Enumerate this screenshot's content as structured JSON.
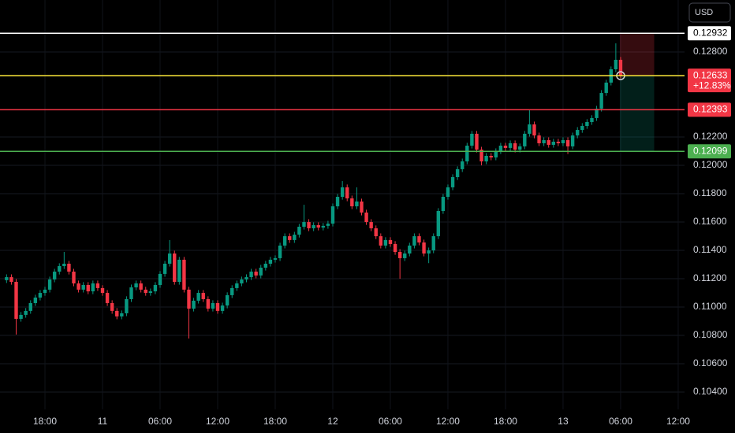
{
  "chart_data": {
    "type": "candlestick",
    "currency": "USD",
    "up_color": "#089981",
    "down_color": "#f23645",
    "grid": true,
    "ylim": [
      0.10278,
      0.13167
    ],
    "yticks": [
      {
        "value": 0.128,
        "label": "0.12800"
      },
      {
        "value": 0.122,
        "label": "0.12200"
      },
      {
        "value": 0.12,
        "label": "0.12000"
      },
      {
        "value": 0.118,
        "label": "0.11800"
      },
      {
        "value": 0.116,
        "label": "0.11600"
      },
      {
        "value": 0.114,
        "label": "0.11400"
      },
      {
        "value": 0.112,
        "label": "0.11200"
      },
      {
        "value": 0.11,
        "label": "0.11000"
      },
      {
        "value": 0.108,
        "label": "0.10800"
      },
      {
        "value": 0.106,
        "label": "0.10600"
      },
      {
        "value": 0.104,
        "label": "0.10400"
      }
    ],
    "categories": [
      null,
      null,
      null,
      null,
      null,
      null,
      null,
      null,
      "18:00",
      null,
      null,
      null,
      null,
      null,
      null,
      null,
      null,
      null,
      null,
      null,
      "11",
      null,
      null,
      null,
      null,
      null,
      null,
      null,
      null,
      null,
      null,
      null,
      "06:00",
      null,
      null,
      null,
      null,
      null,
      null,
      null,
      null,
      null,
      null,
      null,
      "12:00",
      null,
      null,
      null,
      null,
      null,
      null,
      null,
      null,
      null,
      null,
      null,
      "18:00",
      null,
      null,
      null,
      null,
      null,
      null,
      null,
      null,
      null,
      null,
      null,
      "12",
      null,
      null,
      null,
      null,
      null,
      null,
      null,
      null,
      null,
      null,
      null,
      "06:00",
      null,
      null,
      null,
      null,
      null,
      null,
      null,
      null,
      null,
      null,
      null,
      "12:00",
      null,
      null,
      null,
      null,
      null,
      null,
      null,
      null,
      null,
      null,
      null,
      "18:00",
      null,
      null,
      null,
      null,
      null,
      null,
      null,
      null,
      null,
      null,
      null,
      "13",
      null,
      null,
      null,
      null,
      null,
      null,
      null,
      null,
      null,
      null,
      null,
      "06:00",
      null,
      null,
      null,
      null,
      null,
      null,
      null,
      null,
      null,
      null,
      null,
      "12:00"
    ],
    "open": [
      0.1119,
      0.11211,
      0.11178,
      0.10917,
      0.10945,
      0.10973,
      0.11028,
      0.11067,
      0.111,
      0.11123,
      0.11195,
      0.1125,
      0.11289,
      0.11306,
      0.1125,
      0.11167,
      0.11123,
      0.11156,
      0.11111,
      0.11167,
      0.11134,
      0.111,
      0.11028,
      0.10973,
      0.10934,
      0.10956,
      0.11056,
      0.11139,
      0.11167,
      0.11123,
      0.111,
      0.11111,
      0.11156,
      0.11234,
      0.11306,
      0.11378,
      0.11178,
      0.11334,
      0.11123,
      0.10989,
      0.11045,
      0.111,
      0.11056,
      0.10989,
      0.11028,
      0.10973,
      0.11011,
      0.11084,
      0.11134,
      0.11167,
      0.11195,
      0.11211,
      0.1125,
      0.11223,
      0.11278,
      0.11306,
      0.11334,
      0.11345,
      0.11434,
      0.115,
      0.11473,
      0.11511,
      0.11567,
      0.116,
      0.11556,
      0.11578,
      0.11561,
      0.11573,
      0.11589,
      0.11711,
      0.11778,
      0.11845,
      0.11767,
      0.11711,
      0.11745,
      0.11667,
      0.116,
      0.11556,
      0.115,
      0.11434,
      0.11473,
      0.11445,
      0.11389,
      0.11345,
      0.11378,
      0.11434,
      0.115,
      0.11456,
      0.11378,
      0.114,
      0.115,
      0.11678,
      0.11778,
      0.11845,
      0.11917,
      0.11973,
      0.12028,
      0.12139,
      0.12223,
      0.12111,
      0.12028,
      0.12067,
      0.12056,
      0.121,
      0.12139,
      0.12123,
      0.12156,
      0.12111,
      0.12134,
      0.12223,
      0.12289,
      0.12211,
      0.12156,
      0.12178,
      0.12145,
      0.12167,
      0.12156,
      0.12178,
      0.12134,
      0.12211,
      0.1225,
      0.12278,
      0.12306,
      0.12334,
      0.124,
      0.12511,
      0.12584,
      0.12678,
      0.12745,
      null,
      null,
      null,
      null,
      null,
      null,
      null,
      null,
      null,
      null,
      null,
      null
    ],
    "high": [
      0.11231,
      0.11231,
      0.11198,
      0.10965,
      0.10993,
      0.11048,
      0.11087,
      0.1112,
      0.11143,
      0.11215,
      0.1127,
      0.11309,
      0.11389,
      0.11326,
      0.1127,
      0.11187,
      0.11176,
      0.11176,
      0.11187,
      0.11187,
      0.11154,
      0.1112,
      0.11048,
      0.10993,
      0.10976,
      0.11076,
      0.11159,
      0.11187,
      0.11187,
      0.11143,
      0.11131,
      0.11176,
      0.11254,
      0.11326,
      0.11473,
      0.11398,
      0.11354,
      0.11354,
      0.11143,
      0.11065,
      0.1112,
      0.1112,
      0.11076,
      0.11048,
      0.11048,
      0.11031,
      0.11104,
      0.11154,
      0.11187,
      0.11215,
      0.11231,
      0.1127,
      0.1127,
      0.11298,
      0.11326,
      0.11354,
      0.11365,
      0.11454,
      0.1152,
      0.1152,
      0.11531,
      0.11587,
      0.11722,
      0.1162,
      0.11598,
      0.11598,
      0.11593,
      0.11609,
      0.11731,
      0.11798,
      0.11889,
      0.11865,
      0.11787,
      0.11845,
      0.11765,
      0.11687,
      0.1162,
      0.11576,
      0.1152,
      0.11493,
      0.11493,
      0.11465,
      0.11409,
      0.11398,
      0.11454,
      0.1152,
      0.1152,
      0.11476,
      0.1142,
      0.1152,
      0.11698,
      0.11798,
      0.11865,
      0.11937,
      0.11993,
      0.12048,
      0.12159,
      0.12243,
      0.12243,
      0.12131,
      0.12087,
      0.12087,
      0.1212,
      0.12159,
      0.12159,
      0.12176,
      0.12176,
      0.12154,
      0.12243,
      0.12389,
      0.12309,
      0.12231,
      0.12198,
      0.12198,
      0.12187,
      0.12187,
      0.12198,
      0.12198,
      0.12231,
      0.1227,
      0.12298,
      0.12326,
      0.12354,
      0.1242,
      0.12531,
      0.12604,
      0.12698,
      0.12861,
      0.12765,
      null,
      null,
      null,
      null,
      null,
      null,
      null,
      null,
      null,
      null,
      null,
      null
    ],
    "low": [
      0.1117,
      0.11158,
      0.10806,
      0.10897,
      0.10925,
      0.10953,
      0.11008,
      0.11047,
      0.1108,
      0.11103,
      0.11175,
      0.1123,
      0.11269,
      0.1123,
      0.11147,
      0.11103,
      0.11103,
      0.11091,
      0.11091,
      0.11114,
      0.1108,
      0.11008,
      0.10953,
      0.10914,
      0.10914,
      0.10936,
      0.11036,
      0.11119,
      0.11103,
      0.1108,
      0.1108,
      0.11091,
      0.11136,
      0.11214,
      0.11286,
      0.11158,
      0.11158,
      0.11103,
      0.10778,
      0.10969,
      0.11025,
      0.11036,
      0.10969,
      0.10969,
      0.10953,
      0.10953,
      0.10991,
      0.11064,
      0.11114,
      0.11147,
      0.11175,
      0.11191,
      0.11203,
      0.11203,
      0.11258,
      0.11286,
      0.11314,
      0.11325,
      0.11414,
      0.11453,
      0.11453,
      0.11491,
      0.11547,
      0.11536,
      0.11536,
      0.11541,
      0.11541,
      0.11553,
      0.11569,
      0.11691,
      0.11758,
      0.11747,
      0.11691,
      0.11691,
      0.11647,
      0.1158,
      0.11536,
      0.1148,
      0.11414,
      0.11414,
      0.11425,
      0.11369,
      0.112,
      0.11325,
      0.11358,
      0.11414,
      0.11436,
      0.11358,
      0.1131,
      0.1138,
      0.1148,
      0.11658,
      0.11758,
      0.11825,
      0.11897,
      0.11953,
      0.12008,
      0.12119,
      0.12091,
      0.12,
      0.12008,
      0.12036,
      0.12036,
      0.1208,
      0.12103,
      0.12103,
      0.12091,
      0.12091,
      0.12114,
      0.12203,
      0.12191,
      0.12136,
      0.12136,
      0.12125,
      0.12125,
      0.12136,
      0.12136,
      0.1208,
      0.12114,
      0.12191,
      0.1223,
      0.12258,
      0.12286,
      0.12314,
      0.1238,
      0.12491,
      0.12564,
      0.12658,
      0.12613,
      null,
      null,
      null,
      null,
      null,
      null,
      null,
      null,
      null,
      null,
      null,
      null
    ],
    "close": [
      0.11211,
      0.11178,
      0.10917,
      0.10945,
      0.10973,
      0.11028,
      0.11067,
      0.111,
      0.11123,
      0.11195,
      0.1125,
      0.11289,
      0.11306,
      0.1125,
      0.11167,
      0.11123,
      0.11156,
      0.11111,
      0.11167,
      0.11134,
      0.111,
      0.11028,
      0.10973,
      0.10934,
      0.10956,
      0.11056,
      0.11139,
      0.11167,
      0.11123,
      0.111,
      0.11111,
      0.11156,
      0.11234,
      0.11306,
      0.11378,
      0.11178,
      0.11334,
      0.11123,
      0.10989,
      0.11045,
      0.111,
      0.11056,
      0.10989,
      0.11028,
      0.10973,
      0.11011,
      0.11084,
      0.11134,
      0.11167,
      0.11195,
      0.11211,
      0.1125,
      0.11223,
      0.11278,
      0.11306,
      0.11334,
      0.11345,
      0.11434,
      0.115,
      0.11473,
      0.11511,
      0.11567,
      0.116,
      0.11556,
      0.11578,
      0.11561,
      0.11573,
      0.11589,
      0.11711,
      0.11778,
      0.11845,
      0.11767,
      0.11711,
      0.11745,
      0.11667,
      0.116,
      0.11556,
      0.115,
      0.11434,
      0.11473,
      0.11445,
      0.11389,
      0.11345,
      0.11378,
      0.11434,
      0.115,
      0.11456,
      0.11378,
      0.114,
      0.115,
      0.11678,
      0.11778,
      0.11845,
      0.11917,
      0.11973,
      0.12028,
      0.12139,
      0.12223,
      0.12111,
      0.12028,
      0.12067,
      0.12056,
      0.121,
      0.12139,
      0.12123,
      0.12156,
      0.12111,
      0.12134,
      0.12223,
      0.12289,
      0.12211,
      0.12156,
      0.12178,
      0.12145,
      0.12167,
      0.12156,
      0.12178,
      0.12134,
      0.12211,
      0.1225,
      0.12278,
      0.12306,
      0.12334,
      0.124,
      0.12511,
      0.12584,
      0.12678,
      0.12745,
      0.12633,
      null,
      null,
      null,
      null,
      null,
      null,
      null,
      null,
      null,
      null,
      null,
      null
    ],
    "levels": [
      {
        "value": 0.12932,
        "color": "#ffffff",
        "tag_color": "#ffffff"
      },
      {
        "value": 0.12633,
        "color": "#ffeb3b",
        "tag_color": "#f23645",
        "change": "+12.83%"
      },
      {
        "value": 0.12393,
        "color": "#f23645",
        "tag_color": "#f23645"
      },
      {
        "value": 0.12099,
        "color": "#4caf50",
        "tag_color": "#4caf50"
      }
    ]
  }
}
